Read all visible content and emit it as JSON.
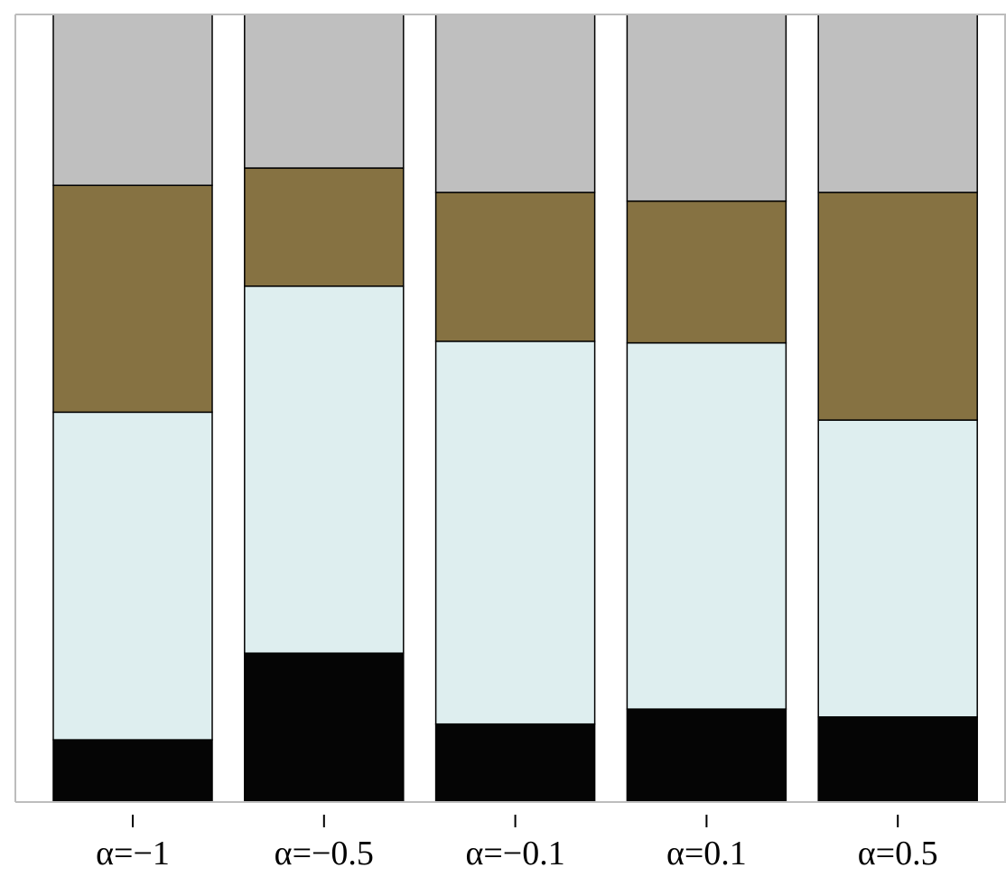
{
  "chart_data": {
    "type": "bar",
    "stacked": true,
    "normalized": true,
    "categories": [
      "α=−1",
      "α=−0.5",
      "α=−0.1",
      "α=0.1",
      "α=0.5"
    ],
    "series": [
      {
        "color": "#050505",
        "values": [
          0.079,
          0.189,
          0.099,
          0.118,
          0.108
        ]
      },
      {
        "color": "#deeeef",
        "values": [
          0.416,
          0.466,
          0.486,
          0.465,
          0.377
        ]
      },
      {
        "color": "#867242",
        "values": [
          0.288,
          0.15,
          0.189,
          0.18,
          0.289
        ]
      },
      {
        "color": "#bfbfbf",
        "values": [
          0.217,
          0.195,
          0.226,
          0.237,
          0.226
        ]
      }
    ],
    "ylim": [
      0,
      1
    ],
    "grid": false,
    "legend": "none"
  }
}
